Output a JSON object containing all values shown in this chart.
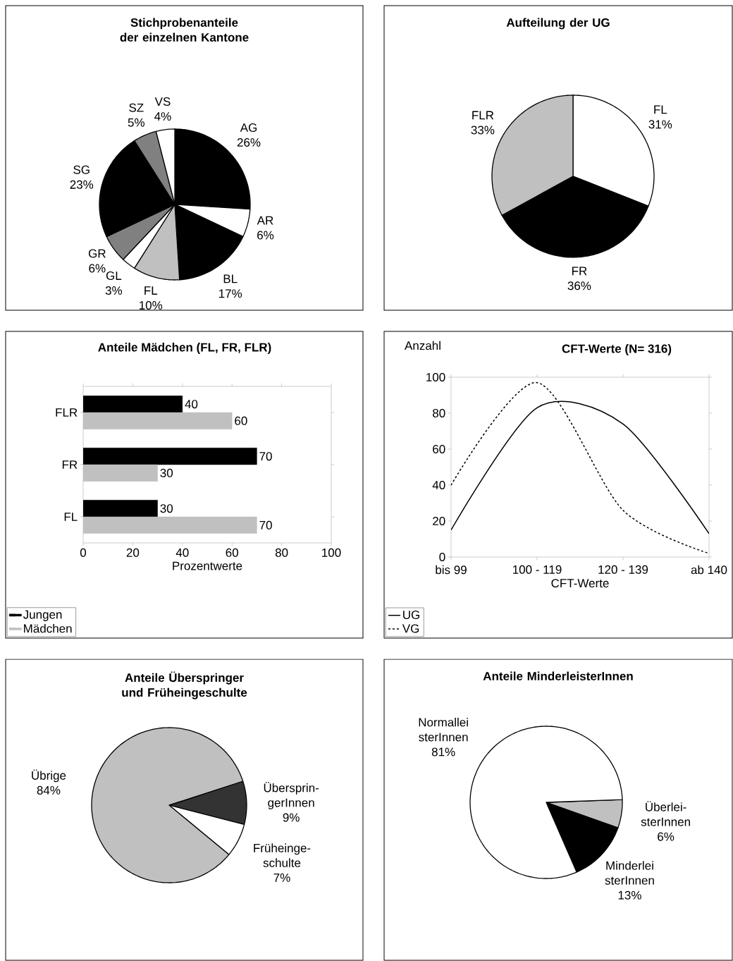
{
  "chart_data": [
    {
      "type": "pie",
      "title": "Stichprobenanteile der einzelnen Kantone",
      "categories": [
        "AG",
        "AR",
        "BL",
        "FL",
        "GL",
        "GR",
        "SG",
        "SZ",
        "VS"
      ],
      "values": [
        26,
        6,
        17,
        10,
        3,
        6,
        23,
        5,
        4
      ],
      "value_labels": [
        "26%",
        "6%",
        "17%",
        "10%",
        "3%",
        "6%",
        "23%",
        "5%",
        "4%"
      ],
      "colors": [
        "#000000",
        "#ffffff",
        "#000000",
        "#c0c0c0",
        "#ffffff",
        "#808080",
        "#000000",
        "#808080",
        "#ffffff"
      ]
    },
    {
      "type": "pie",
      "title": "Aufteilung der UG",
      "categories": [
        "FL",
        "FR",
        "FLR"
      ],
      "values": [
        31,
        36,
        33
      ],
      "value_labels": [
        "31%",
        "36%",
        "33%"
      ],
      "colors": [
        "#ffffff",
        "#000000",
        "#c0c0c0"
      ]
    },
    {
      "type": "bar",
      "orientation": "horizontal",
      "title": "Anteile Mädchen (FL, FR, FLR)",
      "xlabel": "Prozentwerte",
      "categories": [
        "FLR",
        "FR",
        "FL"
      ],
      "series": [
        {
          "name": "Jungen",
          "color": "#000000",
          "values": [
            40,
            70,
            30
          ]
        },
        {
          "name": "Mädchen",
          "color": "#c0c0c0",
          "values": [
            60,
            30,
            70
          ]
        }
      ],
      "xlim": [
        0,
        100
      ],
      "xticks": [
        0,
        20,
        40,
        60,
        80,
        100
      ],
      "data_labels": true,
      "legend": "bottom left"
    },
    {
      "type": "line",
      "title": "CFT-Werte (N= 316)",
      "xlabel": "CFT-Werte",
      "ylabel": "Anzahl",
      "categories": [
        "bis 99",
        "100 - 119",
        "120 - 139",
        "ab 140"
      ],
      "series": [
        {
          "name": "UG",
          "color": "#000000",
          "line_style": "solid",
          "values": [
            15,
            83,
            74,
            13
          ]
        },
        {
          "name": "VG",
          "color": "#000000",
          "line_style": "dashed",
          "values": [
            40,
            97,
            26,
            2
          ]
        }
      ],
      "ylim": [
        0,
        100
      ],
      "yticks": [
        0,
        20,
        40,
        60,
        80,
        100
      ],
      "legend": "bottom left"
    },
    {
      "type": "pie",
      "title": "Anteile Überspringer und Früheingeschulte",
      "categories": [
        "Übersprin-gerInnen",
        "Früheinge-schulte",
        "Übrige"
      ],
      "values": [
        9,
        7,
        84
      ],
      "value_labels": [
        "9%",
        "7%",
        "84%"
      ],
      "colors": [
        "#333333",
        "#ffffff",
        "#c0c0c0"
      ]
    },
    {
      "type": "pie",
      "title": "Anteile MinderleisterInnen",
      "categories": [
        "Überlei-sterInnen",
        "Minderlei sterInnen",
        "Normallei sterInnen"
      ],
      "values": [
        6,
        13,
        81
      ],
      "value_labels": [
        "6%",
        "13%",
        "81%"
      ],
      "colors": [
        "#c0c0c0",
        "#000000",
        "#ffffff"
      ]
    }
  ]
}
